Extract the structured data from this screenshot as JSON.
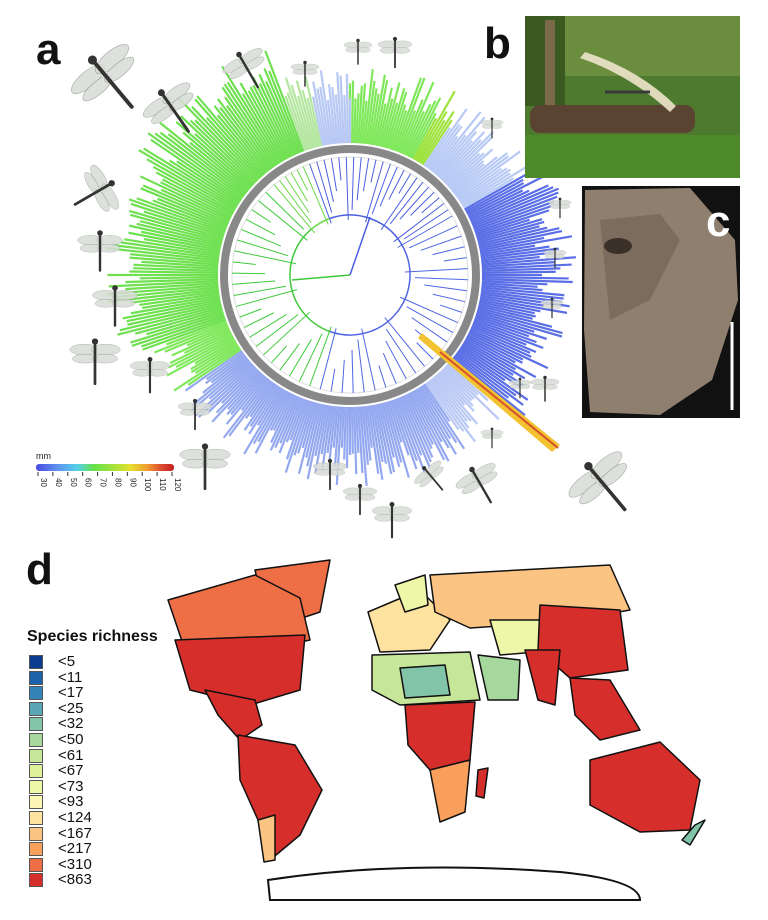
{
  "panels": {
    "a": "a",
    "b": "b",
    "c": "c",
    "d": "d"
  },
  "size_scale": {
    "unit": "mm",
    "ticks": [
      "30",
      "40",
      "50",
      "60",
      "70",
      "80",
      "90",
      "100",
      "110",
      "120"
    ],
    "colors": [
      "#4a4ae0",
      "#5f8ff0",
      "#55d0e8",
      "#66e04a",
      "#9ee23c",
      "#e6e030",
      "#f0a030",
      "#e05030",
      "#c41e1e"
    ]
  },
  "species_richness": {
    "title": "Species richness",
    "classes": [
      {
        "label": "<5",
        "color": "#0a3d8f"
      },
      {
        "label": "<11",
        "color": "#1e62ac"
      },
      {
        "label": "<17",
        "color": "#3584b8"
      },
      {
        "label": "<25",
        "color": "#5aa6b6"
      },
      {
        "label": "<32",
        "color": "#82c4a8"
      },
      {
        "label": "<50",
        "color": "#a6d79c"
      },
      {
        "label": "<61",
        "color": "#c6e69a"
      },
      {
        "label": "<67",
        "color": "#def09a"
      },
      {
        "label": "<73",
        "color": "#eef6a8"
      },
      {
        "label": "<93",
        "color": "#fbf6b4"
      },
      {
        "label": "<124",
        "color": "#fde2a0"
      },
      {
        "label": "<167",
        "color": "#fcc482"
      },
      {
        "label": "<217",
        "color": "#f9a15c"
      },
      {
        "label": "<310",
        "color": "#ee6e46"
      },
      {
        "label": "<863",
        "color": "#d62f2b"
      }
    ]
  }
}
